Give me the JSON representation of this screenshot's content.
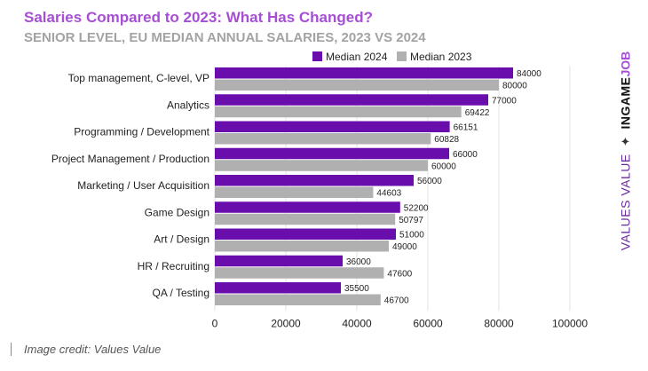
{
  "title": "Salaries Compared to 2023: What Has Changed?",
  "subtitle": "SENIOR LEVEL, EU MEDIAN ANNUAL SALARIES, 2023 VS 2024",
  "brand": {
    "values": "VALUES VALUE",
    "separator": "✦",
    "ingame": "INGAME",
    "job": "JOB"
  },
  "credit": "Image credit: Values Value",
  "colors": {
    "median_2024": "#6a0dad",
    "median_2023": "#b0b0b0",
    "title": "#a64fd4",
    "subtitle": "#a3a3a3",
    "grid": "#e3e3e3"
  },
  "chart_data": {
    "type": "bar",
    "orientation": "horizontal",
    "categories": [
      "Top management, C-level, VP",
      "Analytics",
      "Programming / Development",
      "Project Management / Production",
      "Marketing / User Acquisition",
      "Game Design",
      "Art / Design",
      "HR / Recruiting",
      "QA / Testing"
    ],
    "series": [
      {
        "name": "Median 2024",
        "values": [
          84000,
          77000,
          66151,
          66000,
          56000,
          52200,
          51000,
          36000,
          35500
        ]
      },
      {
        "name": "Median 2023",
        "values": [
          80000,
          69422,
          60828,
          60000,
          44603,
          50797,
          49000,
          47600,
          46700
        ]
      }
    ],
    "xlim": [
      0,
      100000
    ],
    "xticks": [
      0,
      20000,
      40000,
      60000,
      80000,
      100000
    ],
    "grid": true,
    "legend": "top-right"
  }
}
